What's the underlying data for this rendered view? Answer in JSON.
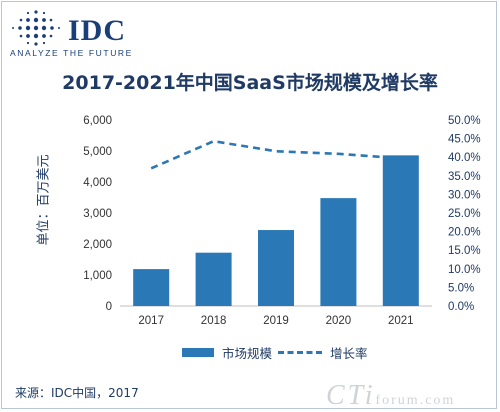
{
  "logo": {
    "brand": "IDC",
    "tagline": "ANALYZE THE FUTURE"
  },
  "y_axis_title": "单位：百万美元",
  "legend": {
    "bar_label": "市场规模",
    "line_label": "增长率"
  },
  "source": "来源：IDC中国，2017",
  "watermark": {
    "big": "CTi",
    "small": "forum.com"
  },
  "colors": {
    "bar": "#2a78b6",
    "line": "#2a78b6",
    "title": "#1f3a64"
  },
  "chart_data": {
    "type": "bar",
    "title": "2017-2021年中国SaaS市场规模及增长率",
    "categories": [
      "2017",
      "2018",
      "2019",
      "2020",
      "2021"
    ],
    "series": [
      {
        "name": "市场规模",
        "type": "bar",
        "axis": "left",
        "values": [
          1190,
          1720,
          2450,
          3480,
          4860
        ]
      },
      {
        "name": "增长率",
        "type": "line",
        "style": "dashed",
        "axis": "right",
        "values": [
          37.0,
          44.3,
          41.6,
          40.9,
          39.7
        ]
      }
    ],
    "ylim_left": [
      0,
      6000
    ],
    "yticks_left": [
      "0",
      "1,000",
      "2,000",
      "3,000",
      "4,000",
      "5,000",
      "6,000"
    ],
    "ylim_right": [
      0,
      50
    ],
    "yticks_right": [
      "0.0%",
      "5.0%",
      "10.0%",
      "15.0%",
      "20.0%",
      "25.0%",
      "30.0%",
      "35.0%",
      "40.0%",
      "45.0%",
      "50.0%"
    ],
    "ylabel_left": "单位：百万美元",
    "legend_position": "bottom",
    "grid": false
  }
}
